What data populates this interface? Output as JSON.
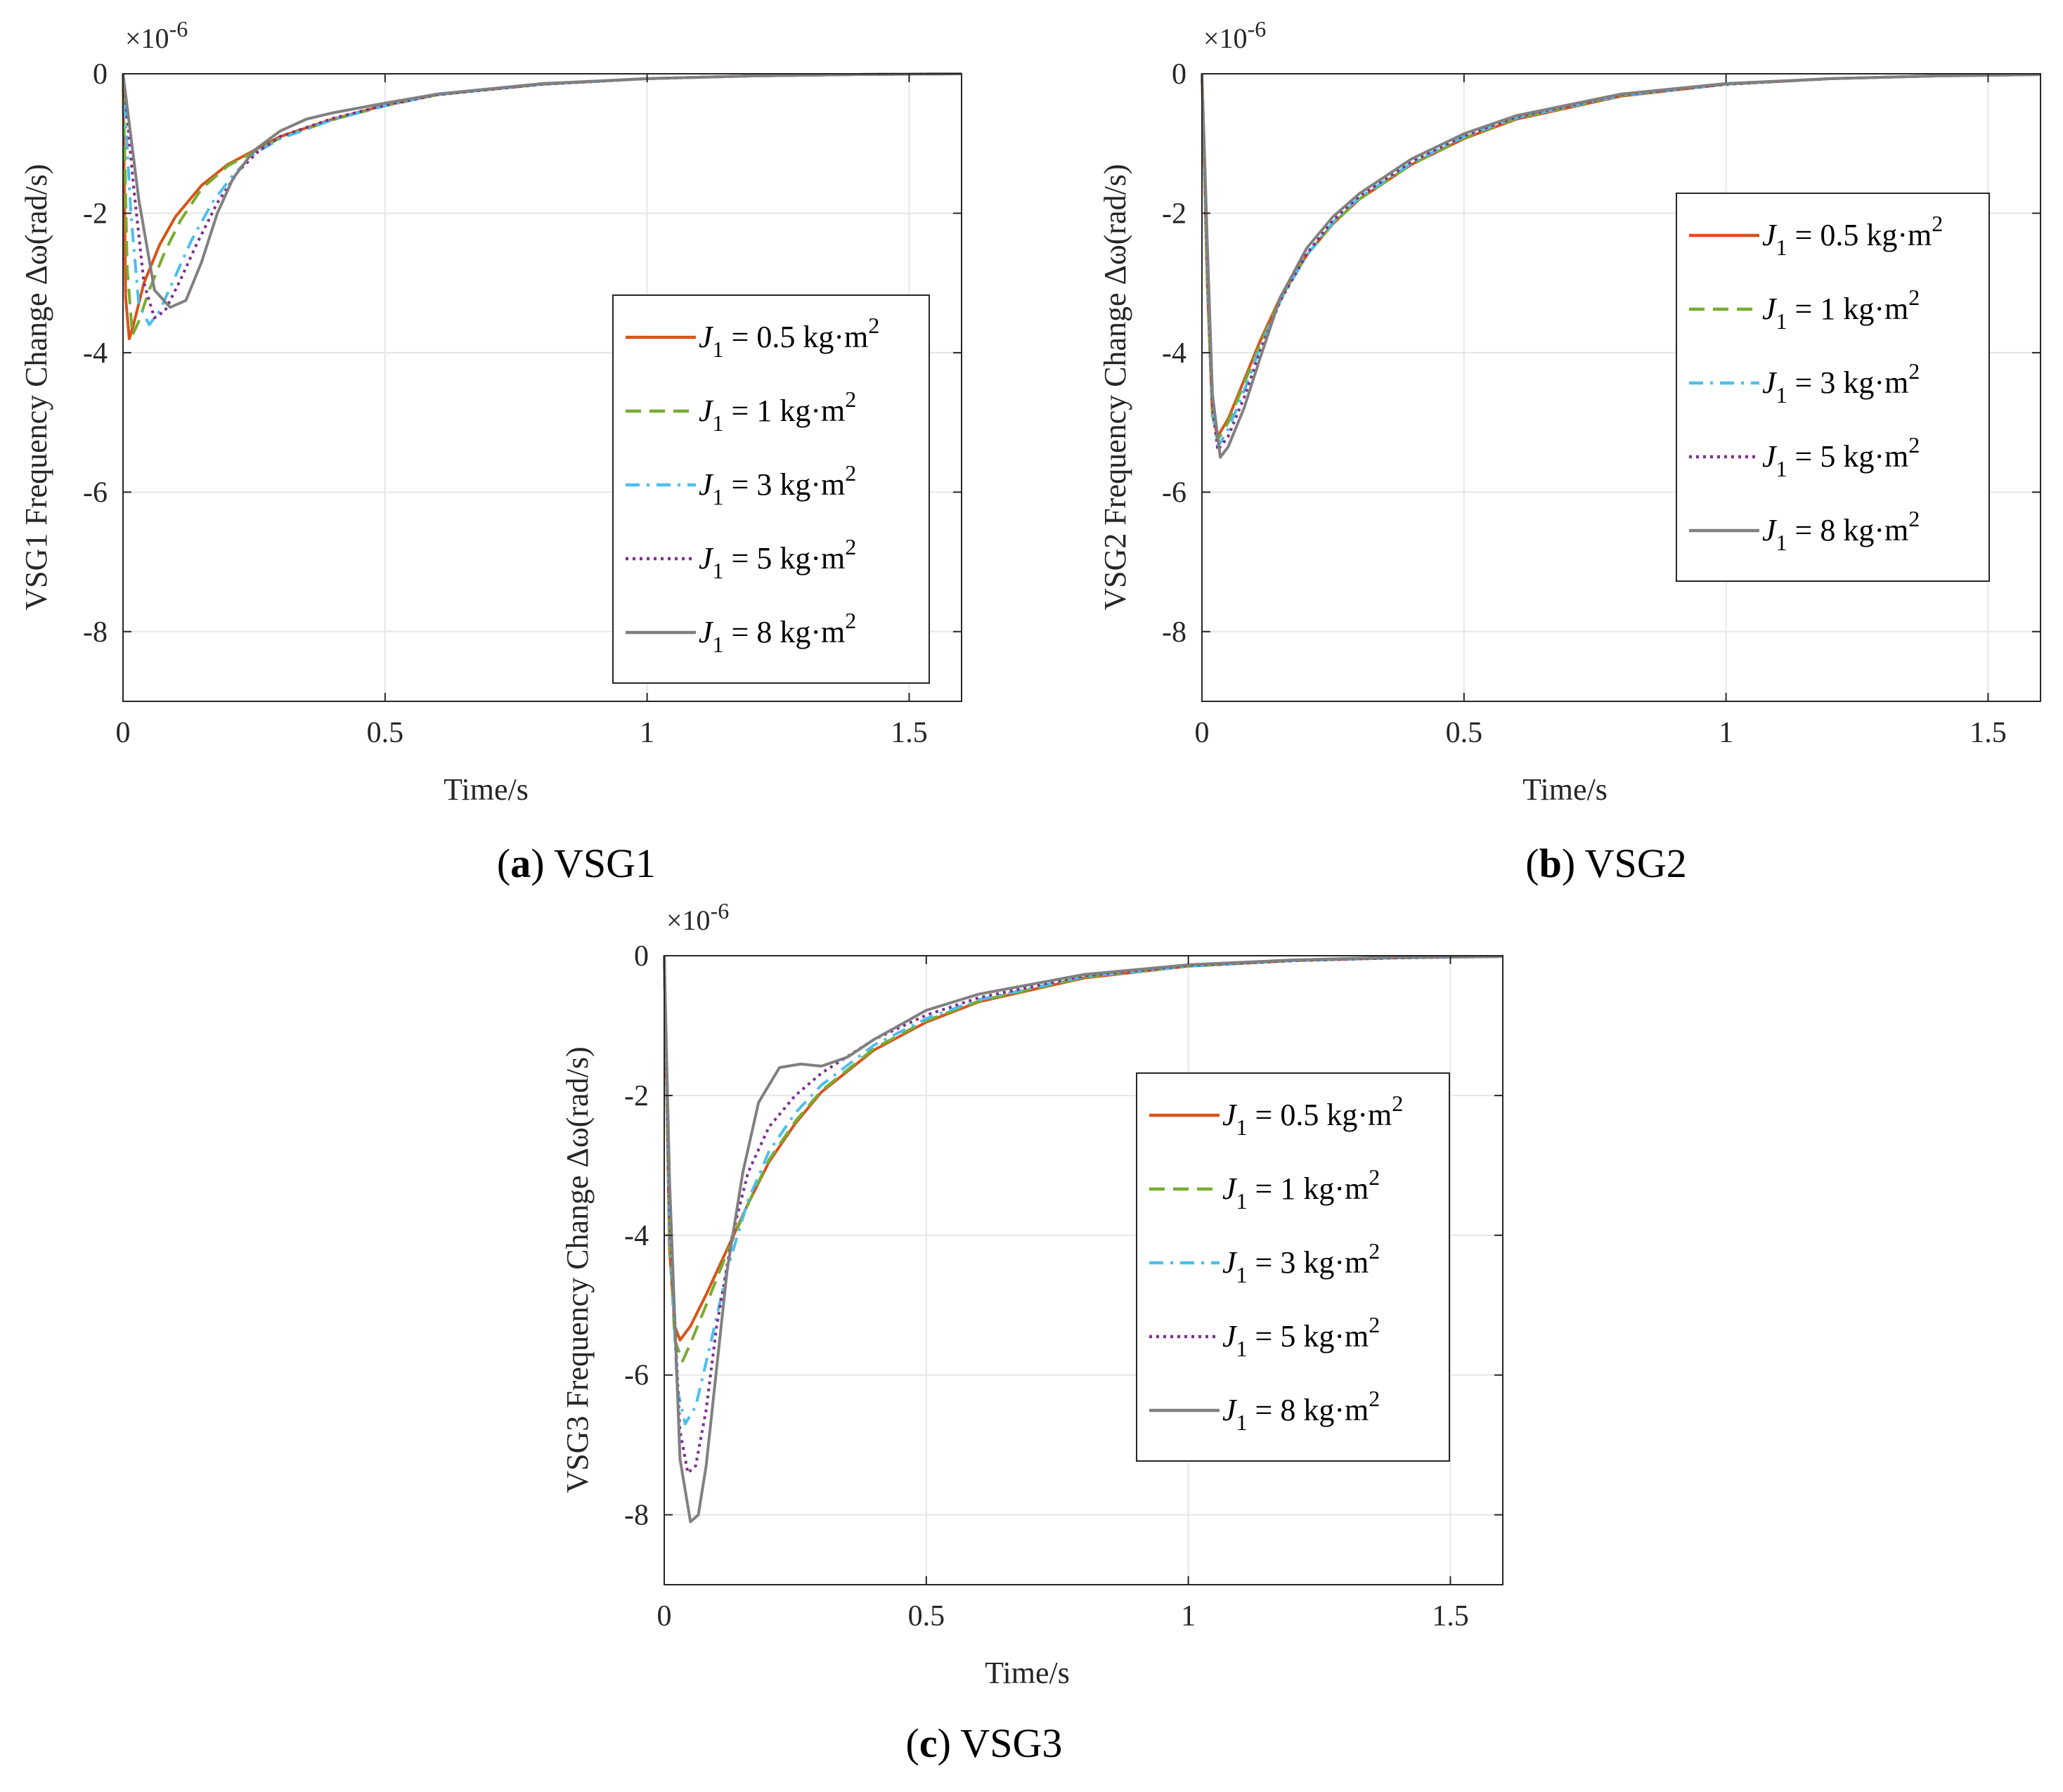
{
  "figure": {
    "panels": [
      {
        "caption_letter": "a",
        "caption_rest": "VSG1"
      },
      {
        "caption_letter": "b",
        "caption_rest": "VSG2"
      },
      {
        "caption_letter": "c",
        "caption_rest": "VSG3"
      }
    ]
  },
  "colors": {
    "j05": "#d95319",
    "j1": "#77ac30",
    "j3": "#4dbeee",
    "j5": "#7e2f8e",
    "j8": "#808080",
    "axis": "#262626",
    "grid": "#e6e6e6"
  },
  "chart_data": [
    {
      "type": "line",
      "title": "(a) VSG1",
      "xlabel": "Time/s",
      "ylabel": "VSG1 Frequency Change Δω(rad/s)",
      "exponent_label": "×10",
      "exponent_power": "-6",
      "xlim": [
        0,
        1.6
      ],
      "ylim": [
        -9,
        0
      ],
      "xticks": [
        0,
        0.5,
        1,
        1.5
      ],
      "xtick_labels": [
        "0",
        "0.5",
        "1",
        "1.5"
      ],
      "yticks": [
        0,
        -2,
        -4,
        -6,
        -8
      ],
      "ytick_labels": [
        "0",
        "-2",
        "-4",
        "-6",
        "-8"
      ],
      "grid": true,
      "legend_position": "center-right",
      "series": [
        {
          "name": "J1 = 0.5 kg·m2",
          "legend": {
            "sym": "J",
            "sub": "1",
            "text": " = 0.5 kg·m",
            "sup": "2"
          },
          "style": "solid",
          "color_key": "j05",
          "x": [
            0,
            0.005,
            0.012,
            0.02,
            0.04,
            0.07,
            0.1,
            0.15,
            0.2,
            0.25,
            0.3,
            0.4,
            0.5,
            0.6,
            0.8,
            1.0,
            1.2,
            1.4,
            1.6
          ],
          "y": [
            0,
            -3.2,
            -3.8,
            -3.6,
            -3.0,
            -2.45,
            -2.05,
            -1.6,
            -1.3,
            -1.1,
            -0.9,
            -0.65,
            -0.45,
            -0.3,
            -0.15,
            -0.07,
            -0.03,
            -0.01,
            0
          ]
        },
        {
          "name": "J1 = 1 kg·m2",
          "legend": {
            "sym": "J",
            "sub": "1",
            "text": " = 1 kg·m",
            "sup": "2"
          },
          "style": "dashed",
          "color_key": "j1",
          "x": [
            0,
            0.008,
            0.018,
            0.03,
            0.05,
            0.08,
            0.11,
            0.15,
            0.2,
            0.25,
            0.3,
            0.4,
            0.5,
            0.6,
            0.8,
            1.0,
            1.2,
            1.4,
            1.6
          ],
          "y": [
            0,
            -2.8,
            -3.75,
            -3.55,
            -3.1,
            -2.55,
            -2.1,
            -1.65,
            -1.32,
            -1.12,
            -0.92,
            -0.66,
            -0.46,
            -0.3,
            -0.15,
            -0.07,
            -0.03,
            -0.01,
            0
          ]
        },
        {
          "name": "J1 = 3 kg·m2",
          "legend": {
            "sym": "J",
            "sub": "1",
            "text": " = 3 kg·m",
            "sup": "2"
          },
          "style": "dashdot",
          "color_key": "j3",
          "x": [
            0,
            0.015,
            0.03,
            0.05,
            0.07,
            0.1,
            0.13,
            0.17,
            0.21,
            0.25,
            0.3,
            0.4,
            0.5,
            0.6,
            0.8,
            1.0,
            1.2,
            1.4,
            1.6
          ],
          "y": [
            0,
            -2.0,
            -3.3,
            -3.6,
            -3.4,
            -2.9,
            -2.4,
            -1.85,
            -1.45,
            -1.15,
            -0.93,
            -0.66,
            -0.46,
            -0.3,
            -0.15,
            -0.07,
            -0.03,
            -0.01,
            0
          ]
        },
        {
          "name": "J1 = 5 kg·m2",
          "legend": {
            "sym": "J",
            "sub": "1",
            "text": " = 5 kg·m",
            "sup": "2"
          },
          "style": "dotted",
          "color_key": "j5",
          "x": [
            0,
            0.02,
            0.04,
            0.06,
            0.08,
            0.11,
            0.14,
            0.18,
            0.22,
            0.26,
            0.3,
            0.4,
            0.5,
            0.6,
            0.8,
            1.0,
            1.2,
            1.4,
            1.6
          ],
          "y": [
            0,
            -1.6,
            -3.0,
            -3.5,
            -3.4,
            -2.95,
            -2.45,
            -1.85,
            -1.4,
            -1.1,
            -0.9,
            -0.64,
            -0.45,
            -0.3,
            -0.15,
            -0.07,
            -0.03,
            -0.01,
            0
          ]
        },
        {
          "name": "J1 = 8 kg·m2",
          "legend": {
            "sym": "J",
            "sub": "1",
            "text": " = 8 kg·m",
            "sup": "2"
          },
          "style": "solid",
          "color_key": "j8",
          "x": [
            0,
            0.03,
            0.06,
            0.09,
            0.12,
            0.15,
            0.18,
            0.21,
            0.25,
            0.3,
            0.35,
            0.4,
            0.5,
            0.6,
            0.8,
            1.0,
            1.2,
            1.4,
            1.6
          ],
          "y": [
            0,
            -1.8,
            -3.1,
            -3.35,
            -3.25,
            -2.7,
            -2.0,
            -1.5,
            -1.1,
            -0.82,
            -0.65,
            -0.56,
            -0.42,
            -0.29,
            -0.14,
            -0.07,
            -0.03,
            -0.01,
            0
          ]
        }
      ]
    },
    {
      "type": "line",
      "title": "(b) VSG2",
      "xlabel": "Time/s",
      "ylabel": "VSG2 Frequency Change Δω(rad/s)",
      "exponent_label": "×10",
      "exponent_power": "-6",
      "xlim": [
        0,
        1.6
      ],
      "ylim": [
        -9,
        0
      ],
      "xticks": [
        0,
        0.5,
        1,
        1.5
      ],
      "xtick_labels": [
        "0",
        "0.5",
        "1",
        "1.5"
      ],
      "yticks": [
        0,
        -2,
        -4,
        -6,
        -8
      ],
      "ytick_labels": [
        "0",
        "-2",
        "-4",
        "-6",
        "-8"
      ],
      "grid": true,
      "legend_position": "top-right",
      "series": [
        {
          "name": "J1 = 0.5 kg·m2",
          "legend": {
            "sym": "J",
            "sub": "1",
            "text": " = 0.5 kg·m",
            "sup": "2"
          },
          "style": "solid",
          "color_key": "j05",
          "x": [
            0,
            0.01,
            0.02,
            0.03,
            0.05,
            0.08,
            0.11,
            0.15,
            0.2,
            0.25,
            0.3,
            0.4,
            0.5,
            0.6,
            0.8,
            1.0,
            1.2,
            1.4,
            1.6
          ],
          "y": [
            0,
            -3.0,
            -4.9,
            -5.2,
            -4.95,
            -4.4,
            -3.85,
            -3.2,
            -2.6,
            -2.15,
            -1.8,
            -1.3,
            -0.93,
            -0.65,
            -0.32,
            -0.15,
            -0.07,
            -0.03,
            -0.01
          ]
        },
        {
          "name": "J1 = 1 kg·m2",
          "legend": {
            "sym": "J",
            "sub": "1",
            "text": " = 1 kg·m",
            "sup": "2"
          },
          "style": "dashed",
          "color_key": "j1",
          "x": [
            0,
            0.01,
            0.02,
            0.03,
            0.05,
            0.08,
            0.11,
            0.15,
            0.2,
            0.25,
            0.3,
            0.4,
            0.5,
            0.6,
            0.8,
            1.0,
            1.2,
            1.4,
            1.6
          ],
          "y": [
            0,
            -2.9,
            -4.9,
            -5.25,
            -5.0,
            -4.45,
            -3.9,
            -3.22,
            -2.6,
            -2.15,
            -1.8,
            -1.3,
            -0.92,
            -0.64,
            -0.31,
            -0.15,
            -0.07,
            -0.03,
            -0.01
          ]
        },
        {
          "name": "J1 = 3 kg·m2",
          "legend": {
            "sym": "J",
            "sub": "1",
            "text": " = 3 kg·m",
            "sup": "2"
          },
          "style": "dashdot",
          "color_key": "j3",
          "x": [
            0,
            0.01,
            0.02,
            0.03,
            0.05,
            0.08,
            0.11,
            0.15,
            0.2,
            0.25,
            0.3,
            0.4,
            0.5,
            0.6,
            0.8,
            1.0,
            1.2,
            1.4,
            1.6
          ],
          "y": [
            0,
            -2.7,
            -4.8,
            -5.35,
            -5.1,
            -4.55,
            -3.95,
            -3.25,
            -2.6,
            -2.13,
            -1.78,
            -1.28,
            -0.9,
            -0.63,
            -0.31,
            -0.15,
            -0.07,
            -0.03,
            -0.01
          ]
        },
        {
          "name": "J1 = 5 kg·m2",
          "legend": {
            "sym": "J",
            "sub": "1",
            "text": " = 5 kg·m",
            "sup": "2"
          },
          "style": "dotted",
          "color_key": "j5",
          "x": [
            0,
            0.01,
            0.02,
            0.03,
            0.05,
            0.08,
            0.11,
            0.15,
            0.2,
            0.25,
            0.3,
            0.4,
            0.5,
            0.6,
            0.8,
            1.0,
            1.2,
            1.4,
            1.6
          ],
          "y": [
            0,
            -2.6,
            -4.75,
            -5.4,
            -5.2,
            -4.65,
            -4.0,
            -3.25,
            -2.58,
            -2.1,
            -1.76,
            -1.26,
            -0.89,
            -0.62,
            -0.3,
            -0.15,
            -0.07,
            -0.03,
            -0.01
          ]
        },
        {
          "name": "J1 = 8 kg·m2",
          "legend": {
            "sym": "J",
            "sub": "1",
            "text": " = 8 kg·m",
            "sup": "2"
          },
          "style": "solid",
          "color_key": "j8",
          "x": [
            0,
            0.01,
            0.02,
            0.035,
            0.05,
            0.08,
            0.11,
            0.15,
            0.2,
            0.25,
            0.3,
            0.4,
            0.5,
            0.6,
            0.8,
            1.0,
            1.2,
            1.4,
            1.6
          ],
          "y": [
            0,
            -2.4,
            -4.6,
            -5.5,
            -5.35,
            -4.8,
            -4.1,
            -3.2,
            -2.5,
            -2.05,
            -1.72,
            -1.22,
            -0.86,
            -0.6,
            -0.29,
            -0.14,
            -0.07,
            -0.03,
            -0.01
          ]
        }
      ]
    },
    {
      "type": "line",
      "title": "(c) VSG3",
      "xlabel": "Time/s",
      "ylabel": "VSG3 Frequency Change Δω(rad/s)",
      "exponent_label": "×10",
      "exponent_power": "-6",
      "xlim": [
        0,
        1.6
      ],
      "ylim": [
        -9,
        0
      ],
      "xticks": [
        0,
        0.5,
        1,
        1.5
      ],
      "xtick_labels": [
        "0",
        "0.5",
        "1",
        "1.5"
      ],
      "yticks": [
        0,
        -2,
        -4,
        -6,
        -8
      ],
      "ytick_labels": [
        "0",
        "-2",
        "-4",
        "-6",
        "-8"
      ],
      "grid": true,
      "legend_position": "center-right",
      "series": [
        {
          "name": "J1 = 0.5 kg·m2",
          "legend": {
            "sym": "J",
            "sub": "1",
            "text": " = 0.5 kg·m",
            "sup": "2"
          },
          "style": "solid",
          "color_key": "j05",
          "x": [
            0,
            0.01,
            0.02,
            0.03,
            0.05,
            0.08,
            0.12,
            0.16,
            0.2,
            0.25,
            0.3,
            0.4,
            0.5,
            0.6,
            0.8,
            1.0,
            1.2,
            1.4,
            1.6
          ],
          "y": [
            0,
            -4.2,
            -5.3,
            -5.5,
            -5.3,
            -4.85,
            -4.2,
            -3.55,
            -2.95,
            -2.4,
            -1.95,
            -1.35,
            -0.95,
            -0.66,
            -0.32,
            -0.15,
            -0.07,
            -0.03,
            -0.01
          ]
        },
        {
          "name": "J1 = 1 kg·m2",
          "legend": {
            "sym": "J",
            "sub": "1",
            "text": " = 1 kg·m",
            "sup": "2"
          },
          "style": "dashed",
          "color_key": "j1",
          "x": [
            0,
            0.01,
            0.02,
            0.035,
            0.05,
            0.08,
            0.12,
            0.16,
            0.2,
            0.25,
            0.3,
            0.4,
            0.5,
            0.6,
            0.8,
            1.0,
            1.2,
            1.4,
            1.6
          ],
          "y": [
            0,
            -4.0,
            -5.5,
            -5.8,
            -5.55,
            -5.0,
            -4.25,
            -3.55,
            -2.92,
            -2.37,
            -1.93,
            -1.33,
            -0.93,
            -0.65,
            -0.31,
            -0.15,
            -0.07,
            -0.03,
            -0.01
          ]
        },
        {
          "name": "J1 = 3 kg·m2",
          "legend": {
            "sym": "J",
            "sub": "1",
            "text": " = 3 kg·m",
            "sup": "2"
          },
          "style": "dashdot",
          "color_key": "j3",
          "x": [
            0,
            0.01,
            0.025,
            0.04,
            0.06,
            0.09,
            0.12,
            0.16,
            0.2,
            0.25,
            0.3,
            0.4,
            0.5,
            0.6,
            0.8,
            1.0,
            1.2,
            1.4,
            1.6
          ],
          "y": [
            0,
            -3.8,
            -6.2,
            -6.7,
            -6.45,
            -5.5,
            -4.5,
            -3.5,
            -2.8,
            -2.25,
            -1.85,
            -1.28,
            -0.9,
            -0.63,
            -0.3,
            -0.15,
            -0.07,
            -0.03,
            -0.01
          ]
        },
        {
          "name": "J1 = 5 kg·m2",
          "legend": {
            "sym": "J",
            "sub": "1",
            "text": " = 5 kg·m",
            "sup": "2"
          },
          "style": "dotted",
          "color_key": "j5",
          "x": [
            0,
            0.01,
            0.03,
            0.045,
            0.06,
            0.08,
            0.1,
            0.13,
            0.16,
            0.2,
            0.25,
            0.3,
            0.4,
            0.5,
            0.6,
            0.8,
            1.0,
            1.2,
            1.4,
            1.6
          ],
          "y": [
            0,
            -3.6,
            -6.8,
            -7.4,
            -7.3,
            -6.5,
            -5.3,
            -4.0,
            -3.1,
            -2.45,
            -2.0,
            -1.68,
            -1.2,
            -0.85,
            -0.6,
            -0.29,
            -0.14,
            -0.07,
            -0.03,
            -0.01
          ]
        },
        {
          "name": "J1 = 8 kg·m2",
          "legend": {
            "sym": "J",
            "sub": "1",
            "text": " = 8 kg·m",
            "sup": "2"
          },
          "style": "solid",
          "color_key": "j8",
          "x": [
            0,
            0.01,
            0.03,
            0.05,
            0.065,
            0.08,
            0.1,
            0.12,
            0.15,
            0.18,
            0.22,
            0.26,
            0.3,
            0.35,
            0.4,
            0.5,
            0.6,
            0.8,
            1.0,
            1.2,
            1.4,
            1.6
          ],
          "y": [
            0,
            -3.2,
            -7.2,
            -8.1,
            -8.0,
            -7.3,
            -5.9,
            -4.5,
            -3.1,
            -2.1,
            -1.6,
            -1.55,
            -1.58,
            -1.45,
            -1.2,
            -0.78,
            -0.55,
            -0.27,
            -0.13,
            -0.06,
            -0.02,
            -0.01
          ]
        }
      ]
    }
  ]
}
